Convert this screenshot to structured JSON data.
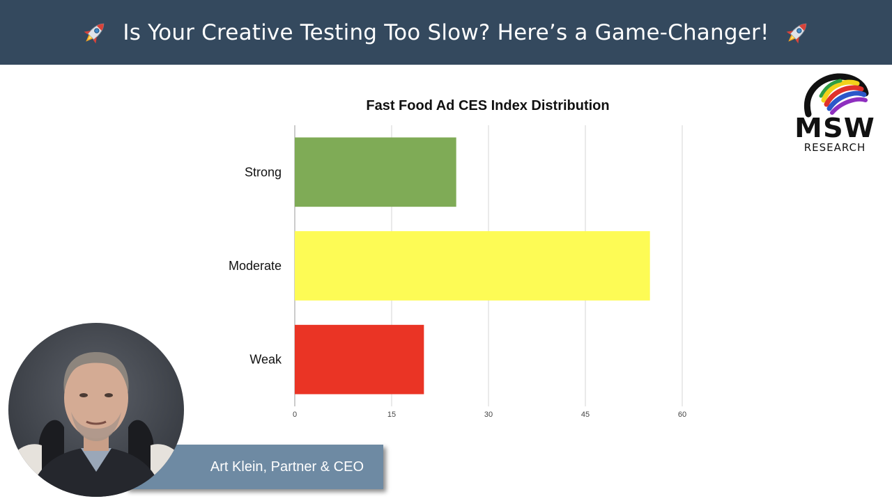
{
  "header": {
    "title": "Is Your Creative Testing Too Slow? Here’s a Game-Changer!",
    "icon_left": "rocket-icon",
    "icon_right": "rocket-icon",
    "background": "#34495e"
  },
  "logo": {
    "line1": "MSW",
    "line2": "RESEARCH"
  },
  "presenter": {
    "name_title": "Art Klein, Partner & CEO"
  },
  "chart_data": {
    "type": "bar",
    "orientation": "horizontal",
    "title": "Fast Food Ad CES Index Distribution",
    "categories": [
      "Strong",
      "Moderate",
      "Weak"
    ],
    "values": [
      25,
      55,
      20
    ],
    "colors": [
      "#7fab56",
      "#fdfb55",
      "#ea3425"
    ],
    "xlim": [
      0,
      60
    ],
    "xticks": [
      0,
      15,
      30,
      45,
      60
    ],
    "grid": true,
    "xlabel": "",
    "ylabel": ""
  }
}
